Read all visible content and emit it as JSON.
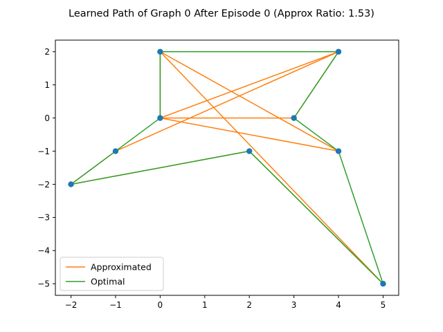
{
  "chart_data": {
    "type": "line",
    "title": "Learned Path of Graph 0 After Episode 0 (Approx Ratio: 1.53)",
    "xlabel": "",
    "ylabel": "",
    "xlim": [
      -2.35,
      5.35
    ],
    "ylim": [
      -5.35,
      2.35
    ],
    "xticks": [
      -2,
      -1,
      0,
      1,
      2,
      3,
      4,
      5
    ],
    "yticks": [
      2,
      1,
      0,
      -1,
      -2,
      -3,
      -4,
      -5
    ],
    "grid": false,
    "legend_position": "lower-left",
    "nodes": [
      {
        "x": 0,
        "y": 2
      },
      {
        "x": 4,
        "y": 2
      },
      {
        "x": 0,
        "y": 0
      },
      {
        "x": 3,
        "y": 0
      },
      {
        "x": -1,
        "y": -1
      },
      {
        "x": 2,
        "y": -1
      },
      {
        "x": 4,
        "y": -1
      },
      {
        "x": -2,
        "y": -2
      },
      {
        "x": 5,
        "y": -5
      }
    ],
    "series": [
      {
        "name": "Approximated",
        "color": "#ff7f0e",
        "x": [
          0,
          0,
          4,
          3,
          0,
          4,
          0,
          5,
          2,
          -2,
          -1,
          4,
          0
        ],
        "y": [
          0,
          2,
          2,
          0,
          0,
          -1,
          2,
          -5,
          -1,
          -2,
          -1,
          2,
          0
        ]
      },
      {
        "name": "Optimal",
        "color": "#2ca02c",
        "x": [
          0,
          0,
          4,
          3,
          4,
          5,
          2,
          -2,
          -1,
          0
        ],
        "y": [
          0,
          2,
          2,
          0,
          -1,
          -5,
          -1,
          -2,
          -1,
          0
        ]
      }
    ],
    "marker_color": "#1f77b4"
  }
}
